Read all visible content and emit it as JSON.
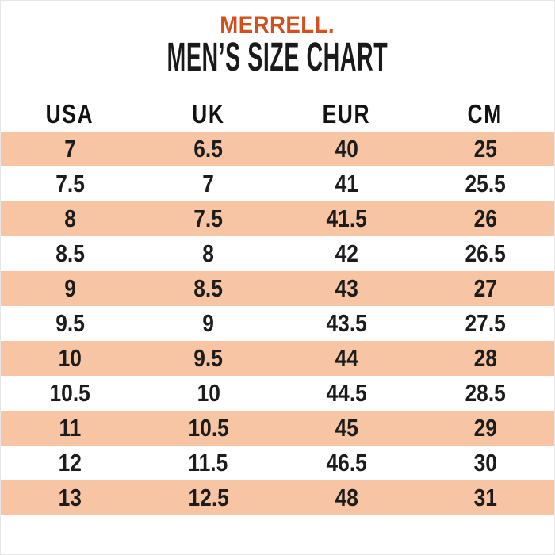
{
  "brand": {
    "logo_text": "MERRELL.",
    "logo_color": "#d0501e"
  },
  "title": "MEN’S SIZE CHART",
  "chart_data": {
    "type": "table",
    "title": "MERRELL. MEN’S SIZE CHART",
    "columns": [
      "USA",
      "UK",
      "EUR",
      "CM"
    ],
    "rows": [
      [
        "7",
        "6.5",
        "40",
        "25"
      ],
      [
        "7.5",
        "7",
        "41",
        "25.5"
      ],
      [
        "8",
        "7.5",
        "41.5",
        "26"
      ],
      [
        "8.5",
        "8",
        "42",
        "26.5"
      ],
      [
        "9",
        "8.5",
        "43",
        "27"
      ],
      [
        "9.5",
        "9",
        "43.5",
        "27.5"
      ],
      [
        "10",
        "9.5",
        "44",
        "28"
      ],
      [
        "10.5",
        "10",
        "44.5",
        "28.5"
      ],
      [
        "11",
        "10.5",
        "45",
        "29"
      ],
      [
        "12",
        "11.5",
        "46.5",
        "30"
      ],
      [
        "13",
        "12.5",
        "48",
        "31"
      ]
    ],
    "stripe_color": "#f7c4a4",
    "stripe_pattern": "first data row shaded, then alternating",
    "background_color": "#ffffff",
    "text_color": "#1c1c1c",
    "grid": false,
    "legend": "none"
  }
}
